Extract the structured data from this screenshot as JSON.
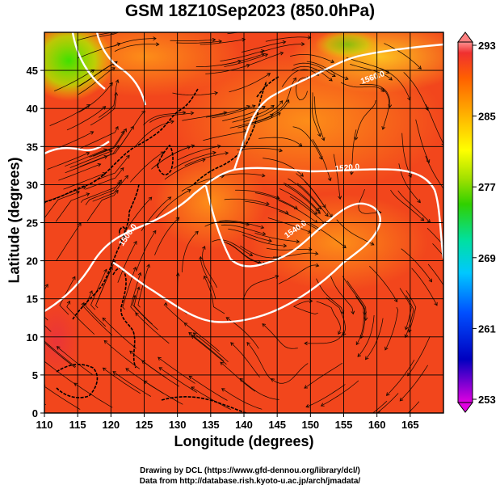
{
  "title": "GSM 18Z10Sep2023 (850.0hPa)",
  "xlabel": "Longitude (degrees)",
  "ylabel": "Latitude  (degrees)",
  "xticks": [
    110,
    115,
    120,
    125,
    130,
    135,
    140,
    145,
    150,
    155,
    160,
    165
  ],
  "yticks": [
    0,
    5,
    10,
    15,
    20,
    25,
    30,
    35,
    40,
    45
  ],
  "xlim": [
    110,
    170
  ],
  "ylim": [
    0,
    50
  ],
  "colorbar": {
    "labels": [
      293,
      285,
      277,
      269,
      261,
      253
    ],
    "range": [
      253,
      293
    ],
    "colors": [
      "#e000e0",
      "#0000c0",
      "#0050ff",
      "#00c8ff",
      "#00e0a0",
      "#30d000",
      "#a0e000",
      "#ffff00",
      "#ffb000",
      "#ff6000",
      "#f03030",
      "#ff9090"
    ]
  },
  "contour_labels": [
    "1500.0",
    "1520.0",
    "1540.0",
    "1560.0"
  ],
  "field_colors": {
    "warm": "#f2401c",
    "mid": "#ff8a10",
    "cool": "#ffc020",
    "cold": "#40e000"
  },
  "credit_line1": "Drawing by DCL (https://www.gfd-dennou.org/library/dcl/)",
  "credit_line2": "Data from http://database.rish.kyoto-u.ac.jp/arch/jmadata/"
}
